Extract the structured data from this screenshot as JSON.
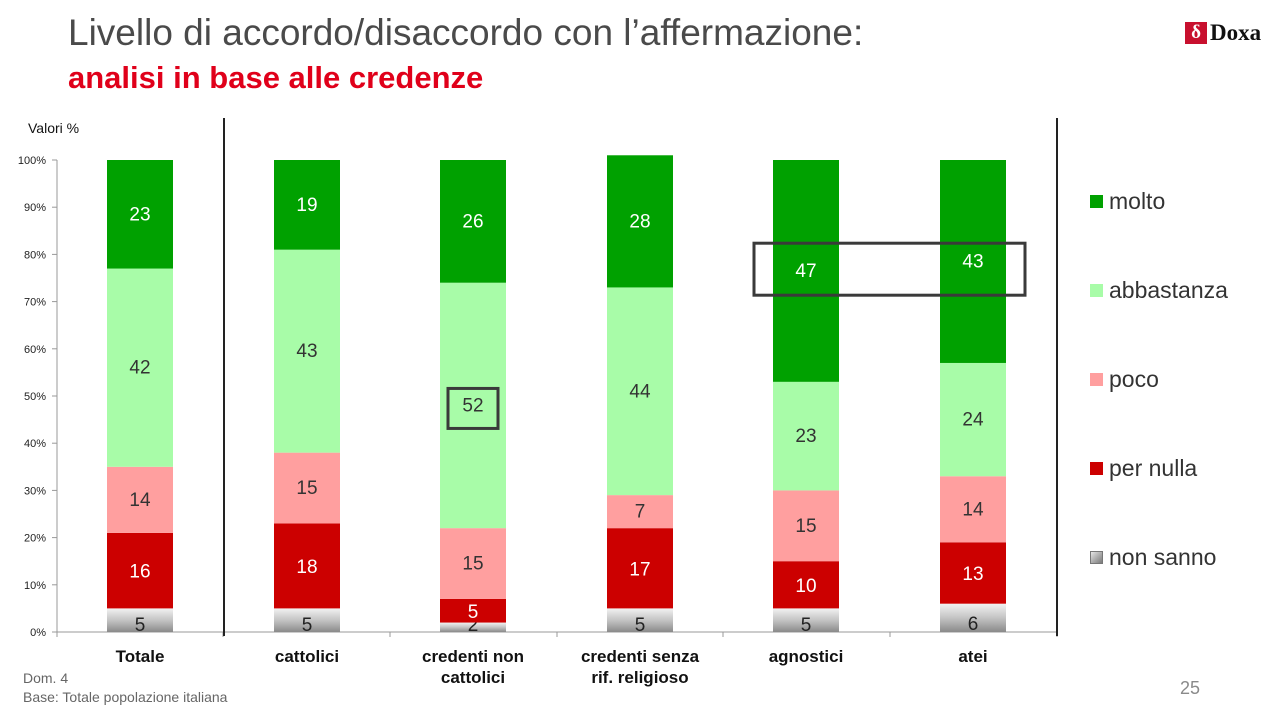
{
  "header": {
    "title": "Livello di accordo/disaccordo con l’affermazione:",
    "subtitle": "analisi in base alle credenze",
    "logo_text": "Doxa",
    "logo_mark": "δ"
  },
  "footer": {
    "dom": "Dom. 4",
    "base": "Base: Totale popolazione italiana",
    "page": "25"
  },
  "chart_data": {
    "type": "bar",
    "stacked": true,
    "unit_label": "Valori %",
    "ylim": [
      0,
      100
    ],
    "ytick_labels": [
      "0%",
      "10%",
      "20%",
      "30%",
      "40%",
      "50%",
      "60%",
      "70%",
      "80%",
      "90%",
      "100%"
    ],
    "categories": [
      [
        "Totale"
      ],
      [
        "cattolici"
      ],
      [
        "credenti non",
        "cattolici"
      ],
      [
        "credenti senza",
        "rif. religioso"
      ],
      [
        "agnostici"
      ],
      [
        "atei"
      ]
    ],
    "series": [
      {
        "name": "non sanno",
        "color": "#b0b0b0",
        "values": [
          5,
          5,
          2,
          5,
          5,
          6
        ]
      },
      {
        "name": "per nulla",
        "color": "#cc0000",
        "values": [
          16,
          18,
          5,
          17,
          10,
          13
        ]
      },
      {
        "name": "poco",
        "color": "#ff9f9f",
        "values": [
          14,
          15,
          15,
          7,
          15,
          14
        ]
      },
      {
        "name": "abbastanza",
        "color": "#a8fca8",
        "values": [
          42,
          43,
          52,
          44,
          23,
          24
        ]
      },
      {
        "name": "molto",
        "color": "#00a100",
        "values": [
          23,
          19,
          26,
          28,
          47,
          43
        ]
      }
    ],
    "legend_order": [
      "molto",
      "abbastanza",
      "poco",
      "per nulla",
      "non sanno"
    ],
    "highlights": [
      {
        "categories": [
          4,
          5
        ],
        "series": "molto"
      },
      {
        "categories": [
          2
        ],
        "series": "abbastanza"
      }
    ],
    "legend_position": "right",
    "grid": false
  }
}
